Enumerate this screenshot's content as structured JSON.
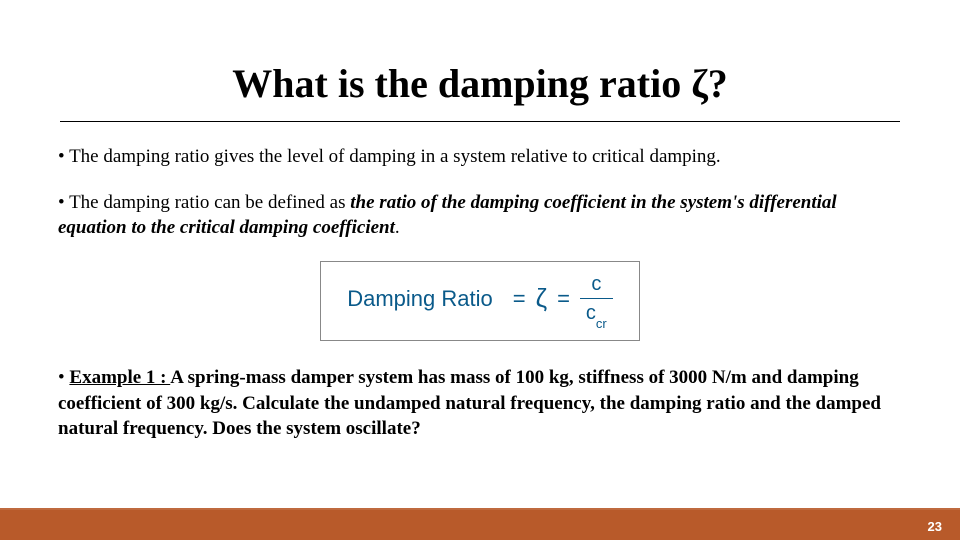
{
  "title": "What is  the damping ratio ζ?",
  "bullets": {
    "b1": {
      "prefix": "• ",
      "text": "The damping ratio gives the level of damping in a system relative to critical damping."
    },
    "b2": {
      "prefix": "• ",
      "lead": "The damping ratio can be defined as ",
      "emph": "the ratio of the damping coefficient in the system's differential equation to the critical damping coefficient",
      "tail": "."
    },
    "b3": {
      "prefix": "• ",
      "label": "Example 1 : ",
      "text": "A spring-mass damper system has mass of 100 kg, stiffness of 3000 N/m and damping coefficient of 300 kg/s. Calculate the undamped natural frequency, the damping ratio and the damped natural frequency. Does the system oscillate?"
    }
  },
  "formula": {
    "label": "Damping Ratio",
    "eq": "=",
    "zeta": "ζ",
    "num": "c",
    "den_base": "c",
    "den_sub": "cr",
    "color": "#0a5a8a",
    "border_color": "#888888"
  },
  "footer": {
    "bar_color": "#b85a2a",
    "page": "23"
  },
  "typography": {
    "title_fontsize": 40,
    "body_fontsize": 19,
    "font_family": "Georgia, Times New Roman, serif"
  }
}
